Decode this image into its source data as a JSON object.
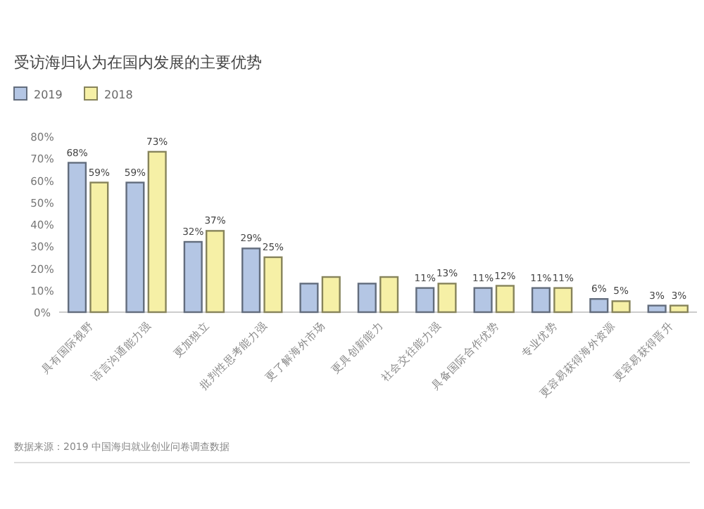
{
  "chart_data": {
    "type": "bar",
    "title": "受访海归认为在国内发展的主要优势",
    "categories": [
      "具有国际视野",
      "语言沟通能力强",
      "更加独立",
      "批判性思考能力强",
      "更了解海外市场",
      "更具创新能力",
      "社会交往能力强",
      "具备国际合作优势",
      "专业优势",
      "更容易获得海外资源",
      "更容易获得晋升"
    ],
    "series": [
      {
        "name": "2019",
        "color": "#b4c6e4",
        "values": [
          68,
          59,
          32,
          29,
          13,
          13,
          11,
          11,
          11,
          6,
          3
        ],
        "value_labels": [
          "68%",
          "59%",
          "32%",
          "29%",
          null,
          null,
          "11%",
          "11%",
          "11%",
          "6%",
          "3%"
        ]
      },
      {
        "name": "2018",
        "color": "#f6f0a6",
        "values": [
          59,
          73,
          37,
          25,
          16,
          16,
          13,
          12,
          11,
          5,
          3
        ],
        "value_labels": [
          "59%",
          "73%",
          "37%",
          "25%",
          null,
          null,
          "13%",
          "12%",
          "11%",
          "5%",
          "3%"
        ]
      }
    ],
    "ylim": [
      0,
      80
    ],
    "yticks": [
      {
        "value": 0,
        "label": "0%"
      },
      {
        "value": 10,
        "label": "10%"
      },
      {
        "value": 20,
        "label": "20%"
      },
      {
        "value": 30,
        "label": "30%"
      },
      {
        "value": 40,
        "label": "40%"
      },
      {
        "value": 50,
        "label": "50%"
      },
      {
        "value": 60,
        "label": "60%"
      },
      {
        "value": 70,
        "label": "70%"
      },
      {
        "value": 80,
        "label": "80%"
      }
    ],
    "legend": "top left",
    "annotations": [
      "数据来源：2019 中国海归就业创业问卷调查数据"
    ]
  }
}
